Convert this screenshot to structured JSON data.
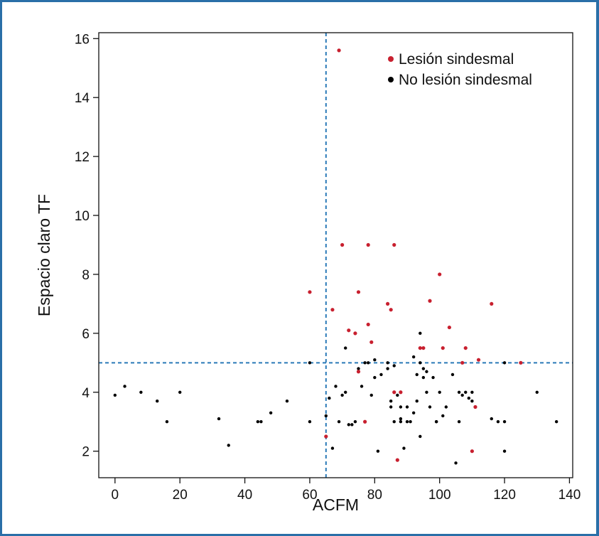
{
  "colors": {
    "border": "#2a6fa8",
    "reference_line": "#2a7ab8",
    "lesion": "#c8202f",
    "no_lesion": "#000000"
  },
  "chart_data": {
    "type": "scatter",
    "title": "",
    "xlabel": "ACFM",
    "ylabel": "Espacio claro TF",
    "xlim": [
      -5,
      141
    ],
    "ylim": [
      1.1,
      16.2
    ],
    "xticks": [
      0,
      20,
      40,
      60,
      80,
      100,
      120,
      140
    ],
    "yticks": [
      2,
      4,
      6,
      8,
      10,
      12,
      14,
      16
    ],
    "grid": false,
    "legend_position": "top-right",
    "reference_lines": {
      "x": 65,
      "y": 5,
      "style": "dashed"
    },
    "series": [
      {
        "name": "Lesión sindesmal",
        "color": "#c8202f",
        "x": [
          69,
          60,
          67,
          70,
          78,
          86,
          75,
          84,
          85,
          78,
          72,
          74,
          79,
          75,
          100,
          97,
          103,
          116,
          94,
          95,
          101,
          108,
          112,
          125,
          65,
          77,
          86,
          88,
          87,
          110,
          111,
          107
        ],
        "y": [
          15.6,
          7.4,
          6.8,
          9.0,
          9.0,
          9.0,
          7.4,
          7.0,
          6.8,
          6.3,
          6.1,
          6.0,
          5.7,
          4.7,
          8.0,
          7.1,
          6.2,
          7.0,
          5.5,
          5.5,
          5.5,
          5.5,
          5.1,
          5.0,
          2.5,
          3.0,
          4.0,
          4.0,
          1.7,
          2.0,
          3.5,
          5.0
        ]
      },
      {
        "name": "No lesión sindesmal",
        "color": "#000000",
        "x": [
          0,
          3,
          8,
          13,
          16,
          20,
          32,
          35,
          44,
          45,
          48,
          53,
          60,
          60,
          65,
          67,
          68,
          69,
          70,
          71,
          72,
          74,
          75,
          76,
          78,
          79,
          80,
          80,
          81,
          82,
          84,
          85,
          85,
          86,
          87,
          88,
          88,
          89,
          90,
          91,
          92,
          93,
          93,
          94,
          94,
          94,
          95,
          95,
          96,
          97,
          98,
          99,
          100,
          101,
          102,
          104,
          105,
          106,
          107,
          108,
          109,
          110,
          110,
          116,
          118,
          120,
          120,
          120,
          130,
          136,
          66,
          71,
          73,
          77,
          84,
          86,
          88,
          90,
          92,
          96,
          99,
          106
        ],
        "y": [
          3.9,
          4.2,
          4.0,
          3.7,
          3.0,
          4.0,
          3.1,
          2.2,
          3.0,
          3.0,
          3.3,
          3.7,
          5.0,
          3.0,
          3.2,
          2.1,
          4.2,
          3.0,
          3.9,
          5.5,
          2.9,
          3.0,
          4.8,
          4.2,
          5.0,
          3.9,
          5.1,
          4.5,
          2.0,
          4.6,
          5.0,
          3.7,
          3.5,
          4.9,
          3.9,
          3.5,
          3.0,
          2.1,
          3.5,
          3.0,
          5.2,
          4.6,
          3.7,
          5.0,
          6.0,
          2.5,
          4.5,
          4.8,
          4.7,
          3.5,
          4.5,
          3.0,
          4.0,
          3.2,
          3.5,
          4.6,
          1.6,
          4.0,
          3.9,
          4.0,
          3.8,
          4.0,
          3.7,
          3.1,
          3.0,
          5.0,
          3.0,
          2.0,
          4.0,
          3.0,
          3.8,
          4.0,
          2.9,
          5.0,
          4.8,
          3.0,
          3.1,
          3.0,
          3.3,
          4.0,
          3.0,
          3.0
        ]
      }
    ]
  }
}
